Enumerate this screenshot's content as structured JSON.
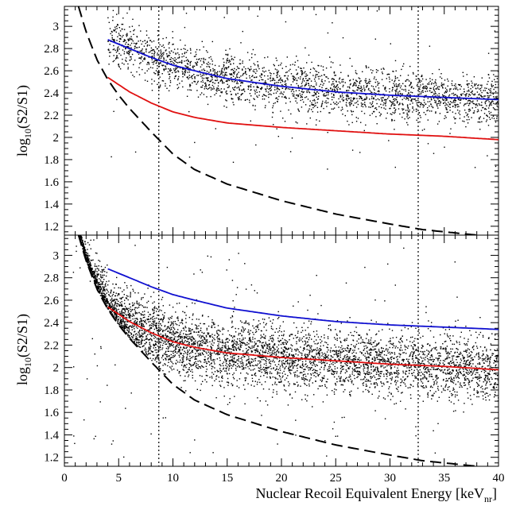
{
  "chart_data": [
    {
      "type": "scatter",
      "title": "",
      "xlabel": "",
      "ylabel": "log10(S2/S1)",
      "ylabel_main": "log",
      "ylabel_sub": "10",
      "ylabel_rest": "(S2/S1)",
      "xlim": [
        0,
        40
      ],
      "ylim": [
        1.12,
        3.18
      ],
      "yticks": [
        1.2,
        1.4,
        1.6,
        1.8,
        2,
        2.2,
        2.4,
        2.6,
        2.8,
        3
      ],
      "ytick_labels": [
        "1.2",
        "1.4",
        "1.6",
        "1.8",
        "2",
        "2.2",
        "2.4",
        "2.6",
        "2.8",
        "3"
      ],
      "vertical_lines_x": [
        8.7,
        32.6
      ],
      "points": {
        "description": "Electron-recoil calibration band (dense scatter)",
        "x_range": [
          4,
          40
        ],
        "center_curve": "blue",
        "count": 2600
      },
      "series": [
        {
          "color": "#1010d0",
          "style": "solid",
          "x": [
            4,
            6,
            8,
            10,
            12,
            15,
            20,
            25,
            30,
            35,
            40
          ],
          "y": [
            2.88,
            2.8,
            2.72,
            2.65,
            2.6,
            2.53,
            2.46,
            2.41,
            2.38,
            2.36,
            2.34
          ]
        },
        {
          "color": "#e01010",
          "style": "solid",
          "x": [
            4,
            6,
            8,
            10,
            12,
            15,
            20,
            25,
            30,
            35,
            40
          ],
          "y": [
            2.54,
            2.41,
            2.31,
            2.23,
            2.18,
            2.13,
            2.09,
            2.06,
            2.03,
            2.01,
            1.98
          ]
        },
        {
          "color": "#000000",
          "style": "dashed",
          "x": [
            1.3,
            2,
            3,
            4,
            5,
            6,
            8,
            10,
            12,
            15,
            20,
            25,
            30,
            33,
            36,
            40
          ],
          "y": [
            3.18,
            2.95,
            2.7,
            2.52,
            2.38,
            2.26,
            2.05,
            1.85,
            1.71,
            1.58,
            1.43,
            1.31,
            1.22,
            1.17,
            1.14,
            1.1
          ]
        }
      ]
    },
    {
      "type": "scatter",
      "title": "",
      "xlabel": "Nuclear Recoil Equivalent Energy [keV",
      "xlabel_sub": "nr",
      "xlabel_end": "]",
      "ylabel": "log10(S2/S1)",
      "ylabel_main": "log",
      "ylabel_sub": "10",
      "ylabel_rest": "(S2/S1)",
      "xlim": [
        0,
        40
      ],
      "ylim": [
        1.12,
        3.18
      ],
      "xticks": [
        0,
        5,
        10,
        15,
        20,
        25,
        30,
        35,
        40
      ],
      "xtick_labels": [
        "0",
        "5",
        "10",
        "15",
        "20",
        "25",
        "30",
        "35",
        "40"
      ],
      "yticks": [
        1.2,
        1.4,
        1.6,
        1.8,
        2,
        2.2,
        2.4,
        2.6,
        2.8,
        3
      ],
      "ytick_labels": [
        "1.2",
        "1.4",
        "1.6",
        "1.8",
        "2",
        "2.2",
        "2.4",
        "2.6",
        "2.8",
        "3"
      ],
      "vertical_lines_x": [
        8.7,
        32.6
      ],
      "points": {
        "description": "Nuclear-recoil calibration band (very dense scatter)",
        "x_range": [
          0.8,
          40
        ],
        "center_curve": "red",
        "count": 5200
      },
      "series": [
        {
          "color": "#1010d0",
          "style": "solid",
          "x": [
            4,
            6,
            8,
            10,
            12,
            15,
            20,
            25,
            30,
            35,
            40
          ],
          "y": [
            2.88,
            2.8,
            2.72,
            2.65,
            2.6,
            2.53,
            2.46,
            2.41,
            2.38,
            2.36,
            2.34
          ]
        },
        {
          "color": "#e01010",
          "style": "solid",
          "x": [
            4,
            6,
            8,
            10,
            12,
            15,
            20,
            25,
            30,
            35,
            40
          ],
          "y": [
            2.54,
            2.41,
            2.31,
            2.23,
            2.18,
            2.13,
            2.09,
            2.06,
            2.03,
            2.01,
            1.98
          ]
        },
        {
          "color": "#000000",
          "style": "dashed",
          "x": [
            1.3,
            2,
            3,
            4,
            5,
            6,
            8,
            10,
            12,
            15,
            20,
            25,
            30,
            33,
            36,
            40
          ],
          "y": [
            3.18,
            2.95,
            2.7,
            2.52,
            2.38,
            2.26,
            2.05,
            1.85,
            1.71,
            1.58,
            1.43,
            1.31,
            1.22,
            1.17,
            1.14,
            1.1
          ]
        }
      ]
    }
  ]
}
